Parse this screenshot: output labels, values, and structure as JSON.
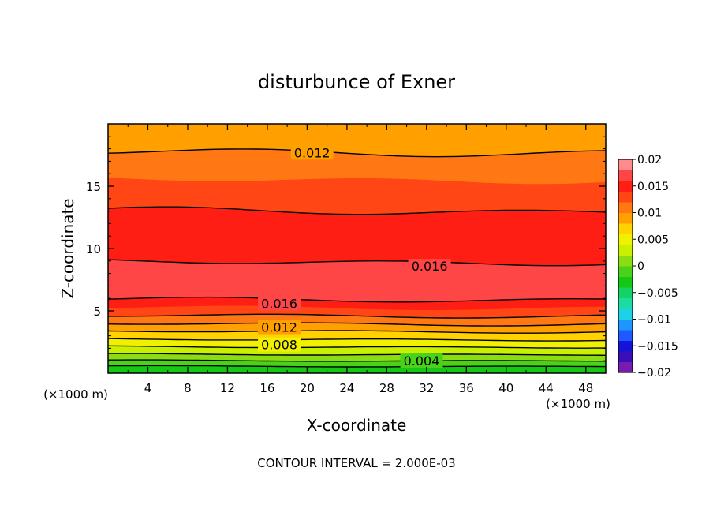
{
  "chart_data": {
    "type": "contour",
    "title": "disturbunce of Exner",
    "xlabel": "X-coordinate",
    "ylabel": "Z-coordinate",
    "x_unit": "(×1000 m)",
    "y_unit": "(×1000 m)",
    "xlim": [
      0,
      50
    ],
    "ylim": [
      0,
      20
    ],
    "x_ticks": [
      4,
      8,
      12,
      16,
      20,
      24,
      28,
      32,
      36,
      40,
      44,
      48
    ],
    "y_ticks": [
      5,
      10,
      15
    ],
    "contour_interval_text": "CONTOUR INTERVAL = 2.000E-03",
    "colorbar": {
      "min": -0.02,
      "max": 0.02,
      "tick_values": [
        0.02,
        0.015,
        0.01,
        0.005,
        0,
        -0.005,
        -0.01,
        -0.015,
        -0.02
      ],
      "tick_labels": [
        "0.02",
        "0.015",
        "0.01",
        "0.005",
        "0",
        "−0.005",
        "−0.01",
        "−0.015",
        "−0.02"
      ],
      "colors_bottom_to_top": [
        "#7a1bb0",
        "#3a0fb8",
        "#1414d8",
        "#1e5aff",
        "#1e96ff",
        "#1ed2e6",
        "#1edca0",
        "#14d264",
        "#14c814",
        "#4ad21a",
        "#8cdc14",
        "#c8f000",
        "#f0f000",
        "#ffd200",
        "#ffa000",
        "#ff7814",
        "#ff4614",
        "#ff1e14",
        "#ff4646",
        "#ff8c8c"
      ]
    },
    "contour_labels": [
      {
        "text": "0.012",
        "x": 20.5,
        "z": 17.7
      },
      {
        "text": "0.016",
        "x": 32.3,
        "z": 8.6
      },
      {
        "text": "0.016",
        "x": 17.2,
        "z": 5.6
      },
      {
        "text": "0.012",
        "x": 17.2,
        "z": 3.7
      },
      {
        "text": "0.008",
        "x": 17.2,
        "z": 2.3
      },
      {
        "text": "0.004",
        "x": 31.5,
        "z": 1.0
      }
    ],
    "bands_bottom_to_top": [
      {
        "color": "#14c814",
        "base": 0.0
      },
      {
        "color": "#4ad21a",
        "base": 0.55
      },
      {
        "color": "#8cdc14",
        "base": 1.0
      },
      {
        "color": "#c8f000",
        "base": 1.5
      },
      {
        "color": "#f0f000",
        "base": 2.1
      },
      {
        "color": "#ffd200",
        "base": 2.7
      },
      {
        "color": "#ffa000",
        "base": 3.35
      },
      {
        "color": "#ff7814",
        "base": 3.95
      },
      {
        "color": "#ff4614",
        "base": 4.6
      },
      {
        "color": "#ff1e14",
        "base": 5.25
      },
      {
        "color": "#ff4646",
        "base": 5.9
      },
      {
        "color": "#ff1e14",
        "base": 8.9
      },
      {
        "color": "#ff4614",
        "base": 13.0
      },
      {
        "color": "#ff7814",
        "base": 15.5
      },
      {
        "color": "#ffa000",
        "base": 17.7
      }
    ],
    "contour_line_bases": [
      0.55,
      1.0,
      1.5,
      2.1,
      2.7,
      3.35,
      3.95,
      4.6,
      5.9,
      8.9,
      13.0,
      17.7
    ]
  }
}
